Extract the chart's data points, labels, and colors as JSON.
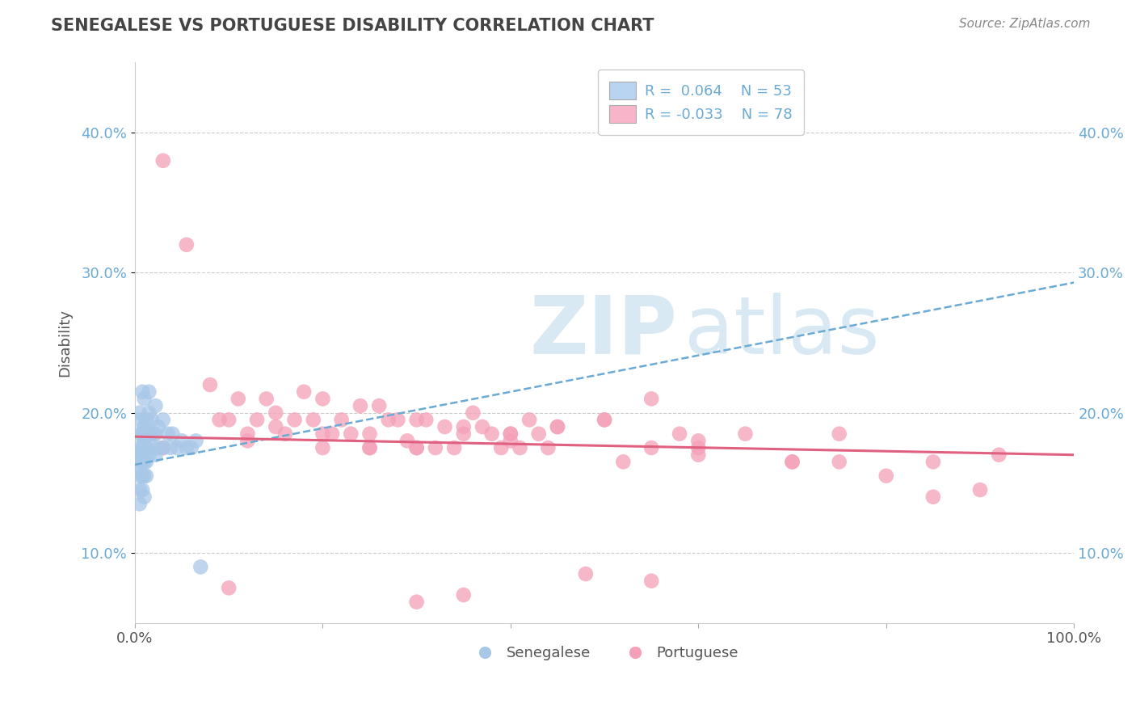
{
  "title": "SENEGALESE VS PORTUGUESE DISABILITY CORRELATION CHART",
  "source": "Source: ZipAtlas.com",
  "ylabel_label": "Disability",
  "xlim": [
    0,
    1.0
  ],
  "ylim": [
    0.05,
    0.45
  ],
  "yticks": [
    0.1,
    0.2,
    0.3,
    0.4
  ],
  "ytick_labels": [
    "10.0%",
    "20.0%",
    "30.0%",
    "40.0%"
  ],
  "xticks": [
    0.0,
    0.2,
    0.4,
    0.6,
    0.8,
    1.0
  ],
  "xtick_labels": [
    "0.0%",
    "",
    "",
    "",
    "",
    "100.0%"
  ],
  "blue_color": "#a8c8e8",
  "pink_color": "#f4a0b8",
  "blue_line_color": "#6aaad4",
  "pink_line_color": "#e06080",
  "blue_scatter_x": [
    0.005,
    0.005,
    0.005,
    0.005,
    0.005,
    0.005,
    0.005,
    0.005,
    0.005,
    0.005,
    0.008,
    0.008,
    0.008,
    0.008,
    0.008,
    0.008,
    0.008,
    0.01,
    0.01,
    0.01,
    0.01,
    0.01,
    0.01,
    0.01,
    0.01,
    0.012,
    0.012,
    0.012,
    0.012,
    0.012,
    0.015,
    0.015,
    0.015,
    0.015,
    0.018,
    0.018,
    0.018,
    0.022,
    0.022,
    0.022,
    0.025,
    0.025,
    0.03,
    0.03,
    0.035,
    0.038,
    0.04,
    0.045,
    0.05,
    0.055,
    0.06,
    0.065,
    0.07
  ],
  "blue_scatter_y": [
    0.195,
    0.185,
    0.175,
    0.165,
    0.155,
    0.145,
    0.135,
    0.2,
    0.17,
    0.16,
    0.185,
    0.175,
    0.17,
    0.165,
    0.155,
    0.145,
    0.215,
    0.19,
    0.185,
    0.18,
    0.175,
    0.165,
    0.155,
    0.21,
    0.14,
    0.195,
    0.185,
    0.175,
    0.165,
    0.155,
    0.215,
    0.2,
    0.185,
    0.17,
    0.195,
    0.185,
    0.175,
    0.205,
    0.185,
    0.17,
    0.19,
    0.175,
    0.195,
    0.175,
    0.185,
    0.175,
    0.185,
    0.175,
    0.18,
    0.175,
    0.175,
    0.18,
    0.09
  ],
  "pink_scatter_x": [
    0.03,
    0.055,
    0.08,
    0.09,
    0.1,
    0.11,
    0.12,
    0.13,
    0.14,
    0.15,
    0.16,
    0.17,
    0.18,
    0.19,
    0.2,
    0.21,
    0.22,
    0.23,
    0.24,
    0.25,
    0.26,
    0.27,
    0.28,
    0.29,
    0.3,
    0.31,
    0.32,
    0.33,
    0.34,
    0.35,
    0.36,
    0.37,
    0.38,
    0.39,
    0.4,
    0.41,
    0.42,
    0.43,
    0.44,
    0.45,
    0.5,
    0.52,
    0.55,
    0.58,
    0.6,
    0.65,
    0.7,
    0.75,
    0.8,
    0.85,
    0.9,
    0.92,
    0.02,
    0.03,
    0.12,
    0.15,
    0.2,
    0.25,
    0.3,
    0.35,
    0.4,
    0.45,
    0.55,
    0.3,
    0.4,
    0.5,
    0.25,
    0.6,
    0.7,
    0.75,
    0.85,
    0.55,
    0.1,
    0.3,
    0.48,
    0.35,
    0.6,
    0.2
  ],
  "pink_scatter_y": [
    0.38,
    0.32,
    0.22,
    0.195,
    0.195,
    0.21,
    0.185,
    0.195,
    0.21,
    0.2,
    0.185,
    0.195,
    0.215,
    0.195,
    0.21,
    0.185,
    0.195,
    0.185,
    0.205,
    0.175,
    0.205,
    0.195,
    0.195,
    0.18,
    0.195,
    0.195,
    0.175,
    0.19,
    0.175,
    0.19,
    0.2,
    0.19,
    0.185,
    0.175,
    0.185,
    0.175,
    0.195,
    0.185,
    0.175,
    0.19,
    0.195,
    0.165,
    0.175,
    0.185,
    0.175,
    0.185,
    0.165,
    0.165,
    0.155,
    0.165,
    0.145,
    0.17,
    0.185,
    0.175,
    0.18,
    0.19,
    0.185,
    0.175,
    0.175,
    0.185,
    0.18,
    0.19,
    0.21,
    0.175,
    0.185,
    0.195,
    0.185,
    0.18,
    0.165,
    0.185,
    0.14,
    0.08,
    0.075,
    0.065,
    0.085,
    0.07,
    0.17,
    0.175
  ],
  "blue_trend_x": [
    0.0,
    1.0
  ],
  "blue_trend_y": [
    0.163,
    0.293
  ],
  "pink_trend_x": [
    0.0,
    1.0
  ],
  "pink_trend_y": [
    0.183,
    0.17
  ],
  "watermark_top": "ZIP",
  "watermark_bot": "atlas",
  "grid_color": "#cccccc",
  "bg_color": "#ffffff",
  "tick_color": "#6aaad4"
}
